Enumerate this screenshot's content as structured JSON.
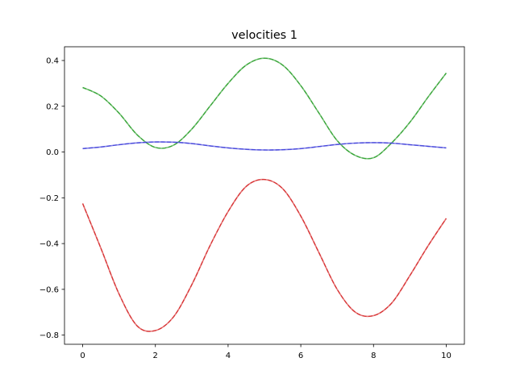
{
  "chart_data": {
    "type": "line",
    "title": "velocities 1",
    "xlabel": "",
    "ylabel": "",
    "xlim": [
      -0.5,
      10.5
    ],
    "ylim": [
      -0.84,
      0.46
    ],
    "x_ticks": [
      0,
      2,
      4,
      6,
      8,
      10
    ],
    "x_tick_labels": [
      "0",
      "2",
      "4",
      "6",
      "8",
      "10"
    ],
    "y_ticks": [
      -0.8,
      -0.6,
      -0.4,
      -0.2,
      0.0,
      0.2,
      0.4
    ],
    "y_tick_labels": [
      "−0.8",
      "−0.6",
      "−0.4",
      "−0.2",
      "0.0",
      "0.2",
      "0.4"
    ],
    "grid": false,
    "x": [
      0,
      0.5,
      1,
      1.5,
      2,
      2.5,
      3,
      3.5,
      4,
      4.5,
      5,
      5.5,
      6,
      6.5,
      7,
      7.5,
      8,
      8.5,
      9,
      9.5,
      10
    ],
    "series": [
      {
        "color": "#2ca02c",
        "values": [
          0.282,
          0.245,
          0.17,
          0.075,
          0.02,
          0.03,
          0.1,
          0.2,
          0.3,
          0.38,
          0.41,
          0.38,
          0.29,
          0.17,
          0.05,
          -0.015,
          -0.025,
          0.04,
          0.13,
          0.24,
          0.345
        ]
      },
      {
        "color": "#3b3bd9",
        "values": [
          0.015,
          0.022,
          0.032,
          0.04,
          0.044,
          0.043,
          0.037,
          0.027,
          0.018,
          0.012,
          0.009,
          0.01,
          0.015,
          0.024,
          0.033,
          0.039,
          0.041,
          0.039,
          0.032,
          0.025,
          0.018
        ]
      },
      {
        "color": "#d62728",
        "values": [
          -0.225,
          -0.42,
          -0.62,
          -0.76,
          -0.78,
          -0.72,
          -0.58,
          -0.41,
          -0.26,
          -0.15,
          -0.12,
          -0.16,
          -0.28,
          -0.44,
          -0.6,
          -0.7,
          -0.715,
          -0.66,
          -0.54,
          -0.41,
          -0.29
        ]
      }
    ]
  }
}
